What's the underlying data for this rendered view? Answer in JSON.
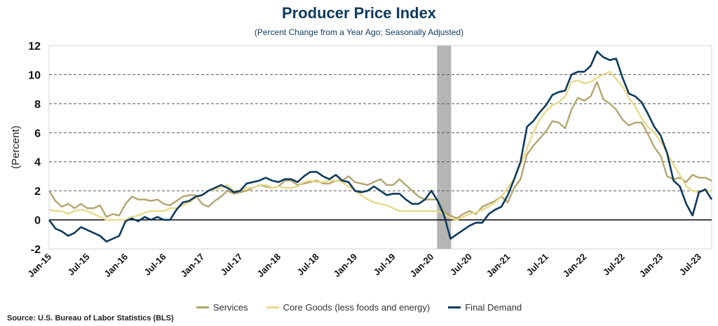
{
  "colors": {
    "services": "#b4a46e",
    "core_goods": "#e8d98a",
    "final_demand": "#0e3a5e",
    "recession": "#b5b5b5",
    "title": "#0e3a5e"
  },
  "source": "Source: U.S. Bureau of Labor Statistics (BLS)",
  "chart_data": {
    "type": "line",
    "title": "Producer Price Index",
    "subtitle": "(Percent Change from a Year Ago; Seasonally Adjusted)",
    "xlabel": "",
    "ylabel": "(Percent)",
    "ylim": [
      -2,
      12
    ],
    "yticks": [
      "-2",
      "0",
      "2",
      "4",
      "6",
      "8",
      "10",
      "12"
    ],
    "xticks": [
      "Jan-15",
      "Jul-15",
      "Jan-16",
      "Jul-16",
      "Jan-17",
      "Jul-17",
      "Jan-18",
      "Jul-18",
      "Jan-19",
      "Jul-19",
      "Jan-20",
      "Jul-20",
      "Jan-21",
      "Jul-21",
      "Jan-22",
      "Jul-22",
      "Jan-23",
      "Jul-23"
    ],
    "x_start": "Jan-15",
    "x_end": "Sep-23",
    "frequency": "monthly",
    "grid": "horizontal dashed",
    "legend_position": "bottom",
    "recession_shading": {
      "start_index": 61,
      "end_index": 63,
      "label": "Feb-20 to Apr-20"
    },
    "series": [
      {
        "name": "Services",
        "key": "services",
        "values": [
          2.0,
          1.3,
          0.9,
          1.1,
          0.8,
          1.1,
          0.8,
          0.8,
          1.0,
          0.2,
          0.4,
          0.3,
          1.1,
          1.6,
          1.4,
          1.4,
          1.3,
          1.4,
          1.1,
          1.0,
          1.3,
          1.6,
          1.7,
          1.7,
          1.1,
          0.9,
          1.3,
          1.6,
          2.0,
          1.8,
          1.9,
          2.0,
          2.2,
          2.4,
          2.3,
          2.2,
          2.3,
          2.7,
          2.7,
          2.4,
          2.5,
          2.6,
          2.7,
          2.5,
          2.5,
          2.7,
          2.7,
          3.0,
          2.6,
          2.5,
          2.4,
          2.6,
          2.8,
          2.4,
          2.4,
          2.8,
          2.4,
          2.0,
          1.6,
          1.4,
          1.4,
          1.4,
          0.5,
          0.3,
          0.1,
          0.4,
          0.6,
          0.4,
          0.9,
          1.1,
          1.3,
          1.6,
          1.2,
          2.2,
          2.8,
          4.5,
          5.1,
          5.6,
          6.1,
          6.8,
          6.7,
          6.3,
          7.6,
          8.4,
          8.2,
          8.5,
          9.5,
          8.3,
          8.0,
          7.6,
          6.9,
          6.5,
          6.7,
          6.7,
          5.9,
          5.0,
          4.4,
          3.0,
          2.8,
          2.9,
          2.6,
          3.1,
          2.9,
          2.9,
          2.7
        ]
      },
      {
        "name": "Core Goods (less foods and energy)",
        "key": "core_goods",
        "values": [
          0.7,
          0.6,
          0.6,
          0.4,
          0.6,
          0.7,
          0.6,
          0.4,
          0.2,
          0.0,
          0.0,
          0.0,
          0.0,
          0.2,
          0.3,
          0.5,
          0.6,
          0.6,
          0.6,
          0.8,
          0.8,
          1.0,
          1.2,
          1.5,
          1.7,
          2.0,
          2.1,
          2.2,
          2.4,
          2.0,
          2.0,
          2.2,
          2.2,
          2.4,
          2.4,
          2.2,
          2.3,
          2.2,
          2.2,
          2.3,
          2.6,
          2.7,
          2.6,
          2.6,
          2.7,
          2.7,
          2.6,
          2.3,
          2.0,
          1.7,
          1.4,
          1.2,
          1.1,
          1.0,
          0.8,
          0.6,
          0.6,
          0.6,
          0.6,
          0.6,
          0.6,
          0.6,
          0.4,
          0.1,
          0.0,
          0.2,
          0.4,
          0.5,
          0.7,
          0.9,
          1.2,
          1.6,
          2.2,
          2.8,
          3.8,
          4.9,
          6.0,
          6.9,
          7.5,
          7.9,
          8.1,
          8.5,
          9.5,
          9.6,
          9.4,
          9.5,
          9.8,
          10.0,
          10.2,
          9.7,
          9.2,
          8.4,
          7.8,
          7.0,
          6.4,
          6.0,
          5.4,
          4.6,
          3.8,
          3.1,
          2.3,
          2.0,
          1.9,
          2.0,
          2.0
        ]
      },
      {
        "name": "Final Demand",
        "key": "final_demand",
        "values": [
          0.0,
          -0.6,
          -0.8,
          -1.1,
          -0.9,
          -0.5,
          -0.7,
          -0.9,
          -1.1,
          -1.5,
          -1.3,
          -1.1,
          -0.1,
          0.1,
          -0.1,
          0.2,
          0.0,
          0.2,
          0.0,
          0.0,
          0.7,
          1.2,
          1.3,
          1.6,
          1.7,
          2.0,
          2.2,
          2.4,
          2.2,
          1.9,
          2.0,
          2.5,
          2.6,
          2.7,
          2.9,
          2.7,
          2.6,
          2.8,
          2.8,
          2.6,
          3.0,
          3.3,
          3.3,
          3.0,
          2.8,
          3.1,
          2.7,
          2.6,
          2.0,
          1.9,
          2.0,
          2.3,
          2.0,
          1.7,
          1.8,
          1.8,
          1.4,
          1.1,
          1.1,
          1.4,
          2.0,
          1.3,
          0.3,
          -1.3,
          -1.0,
          -0.7,
          -0.4,
          -0.2,
          -0.2,
          0.4,
          0.7,
          0.9,
          1.7,
          2.8,
          4.0,
          6.4,
          6.8,
          7.4,
          7.9,
          8.6,
          8.8,
          8.9,
          10.0,
          10.2,
          10.2,
          10.6,
          11.6,
          11.2,
          11.0,
          11.1,
          9.8,
          8.7,
          8.5,
          8.1,
          7.3,
          6.4,
          5.8,
          4.6,
          2.7,
          2.3,
          1.1,
          0.3,
          1.9,
          2.1,
          1.4
        ]
      }
    ]
  }
}
